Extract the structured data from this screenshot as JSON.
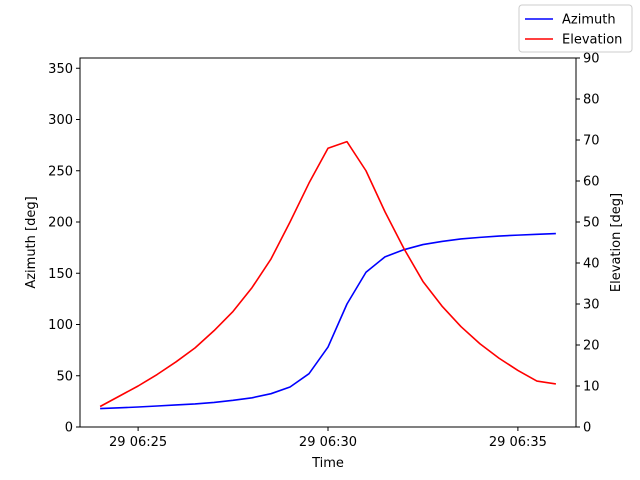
{
  "chart_data": {
    "type": "line",
    "xlabel": "Time",
    "ylabel_left": "Azimuth [deg]",
    "ylabel_right": "Elevation [deg]",
    "x_ticks": [
      "29 06:25",
      "29 06:30",
      "29 06:35"
    ],
    "x_tick_minutes": [
      25,
      30,
      35
    ],
    "xlim_minutes": [
      23.47,
      36.53
    ],
    "y_left": {
      "lim": [
        0,
        360
      ],
      "ticks": [
        0,
        50,
        100,
        150,
        200,
        250,
        300,
        350
      ]
    },
    "y_right": {
      "lim": [
        0,
        90
      ],
      "ticks": [
        0,
        10,
        20,
        30,
        40,
        50,
        60,
        70,
        80,
        90
      ]
    },
    "legend": {
      "position": "top-right"
    },
    "x_minutes": [
      24.0,
      24.5,
      25.0,
      25.5,
      26.0,
      26.5,
      27.0,
      27.5,
      28.0,
      28.5,
      29.0,
      29.5,
      30.0,
      30.5,
      31.0,
      31.5,
      32.0,
      32.5,
      33.0,
      33.5,
      34.0,
      34.5,
      35.0,
      35.5,
      36.0
    ],
    "series": [
      {
        "name": "Azimuth",
        "axis": "left",
        "color": "#0000ff",
        "values": [
          18,
          18.7,
          19.5,
          20.5,
          21.5,
          22.5,
          24,
          26,
          28.5,
          32.5,
          39,
          52,
          78,
          120,
          151,
          166,
          173,
          178,
          181,
          183.5,
          185,
          186.3,
          187.2,
          188,
          188.7
        ]
      },
      {
        "name": "Elevation",
        "axis": "right",
        "color": "#ff0000",
        "values": [
          5,
          7.5,
          10,
          12.8,
          15.9,
          19.3,
          23.5,
          28.2,
          34,
          41,
          50,
          59.5,
          68,
          69.6,
          62.5,
          52.5,
          43.5,
          35.5,
          29.5,
          24.5,
          20.3,
          16.8,
          13.8,
          11.2,
          10.5
        ]
      }
    ]
  }
}
